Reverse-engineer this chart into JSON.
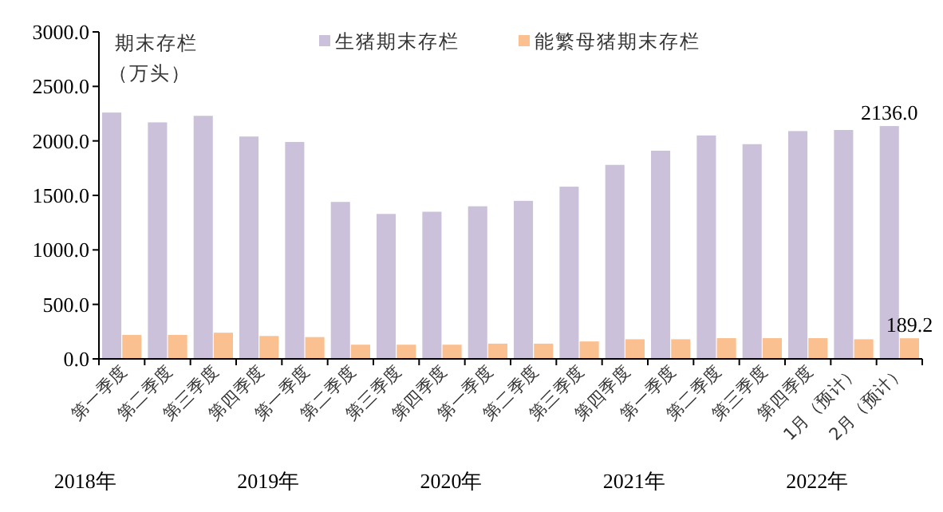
{
  "chart_data": {
    "type": "bar",
    "ylabel": "期末存栏（万头）",
    "categories": [
      "第一季度",
      "第二季度",
      "第三季度",
      "第四季度",
      "第一季度",
      "第二季度",
      "第三季度",
      "第四季度",
      "第一季度",
      "第二季度",
      "第三季度",
      "第四季度",
      "第一季度",
      "第二季度",
      "第三季度",
      "第四季度",
      "1月（预计）",
      "2月（预计）"
    ],
    "series": [
      {
        "name": "生猪期末存栏",
        "color": "#ccc1da",
        "values": [
          2260,
          2170,
          2230,
          2040,
          1990,
          1440,
          1330,
          1350,
          1400,
          1450,
          1580,
          1780,
          1910,
          2050,
          1970,
          2090,
          2100,
          2136.0
        ],
        "value_labels": [
          null,
          null,
          null,
          null,
          null,
          null,
          null,
          null,
          null,
          null,
          null,
          null,
          null,
          null,
          null,
          null,
          null,
          "2136.0"
        ]
      },
      {
        "name": "能繁母猪期末存栏",
        "color": "#fac090",
        "values": [
          220,
          220,
          240,
          210,
          200,
          130,
          130,
          130,
          140,
          140,
          160,
          180,
          180,
          190,
          190,
          190,
          180,
          189.2
        ],
        "value_labels": [
          null,
          null,
          null,
          null,
          null,
          null,
          null,
          null,
          null,
          null,
          null,
          null,
          null,
          null,
          null,
          null,
          null,
          "189.2"
        ]
      }
    ],
    "ylim": [
      0,
      3000
    ],
    "yticks": [
      {
        "value": 0,
        "label": "0.0"
      },
      {
        "value": 500,
        "label": "500.0"
      },
      {
        "value": 1000,
        "label": "1000.0"
      },
      {
        "value": 1500,
        "label": "1500.0"
      },
      {
        "value": 2000,
        "label": "2000.0"
      },
      {
        "value": 2500,
        "label": "2500.0"
      },
      {
        "value": 3000,
        "label": "3000.0"
      }
    ],
    "annotations": [
      "2018年",
      "2019年",
      "2020年",
      "2021年",
      "2022年"
    ],
    "legend": "top",
    "grid": false
  }
}
